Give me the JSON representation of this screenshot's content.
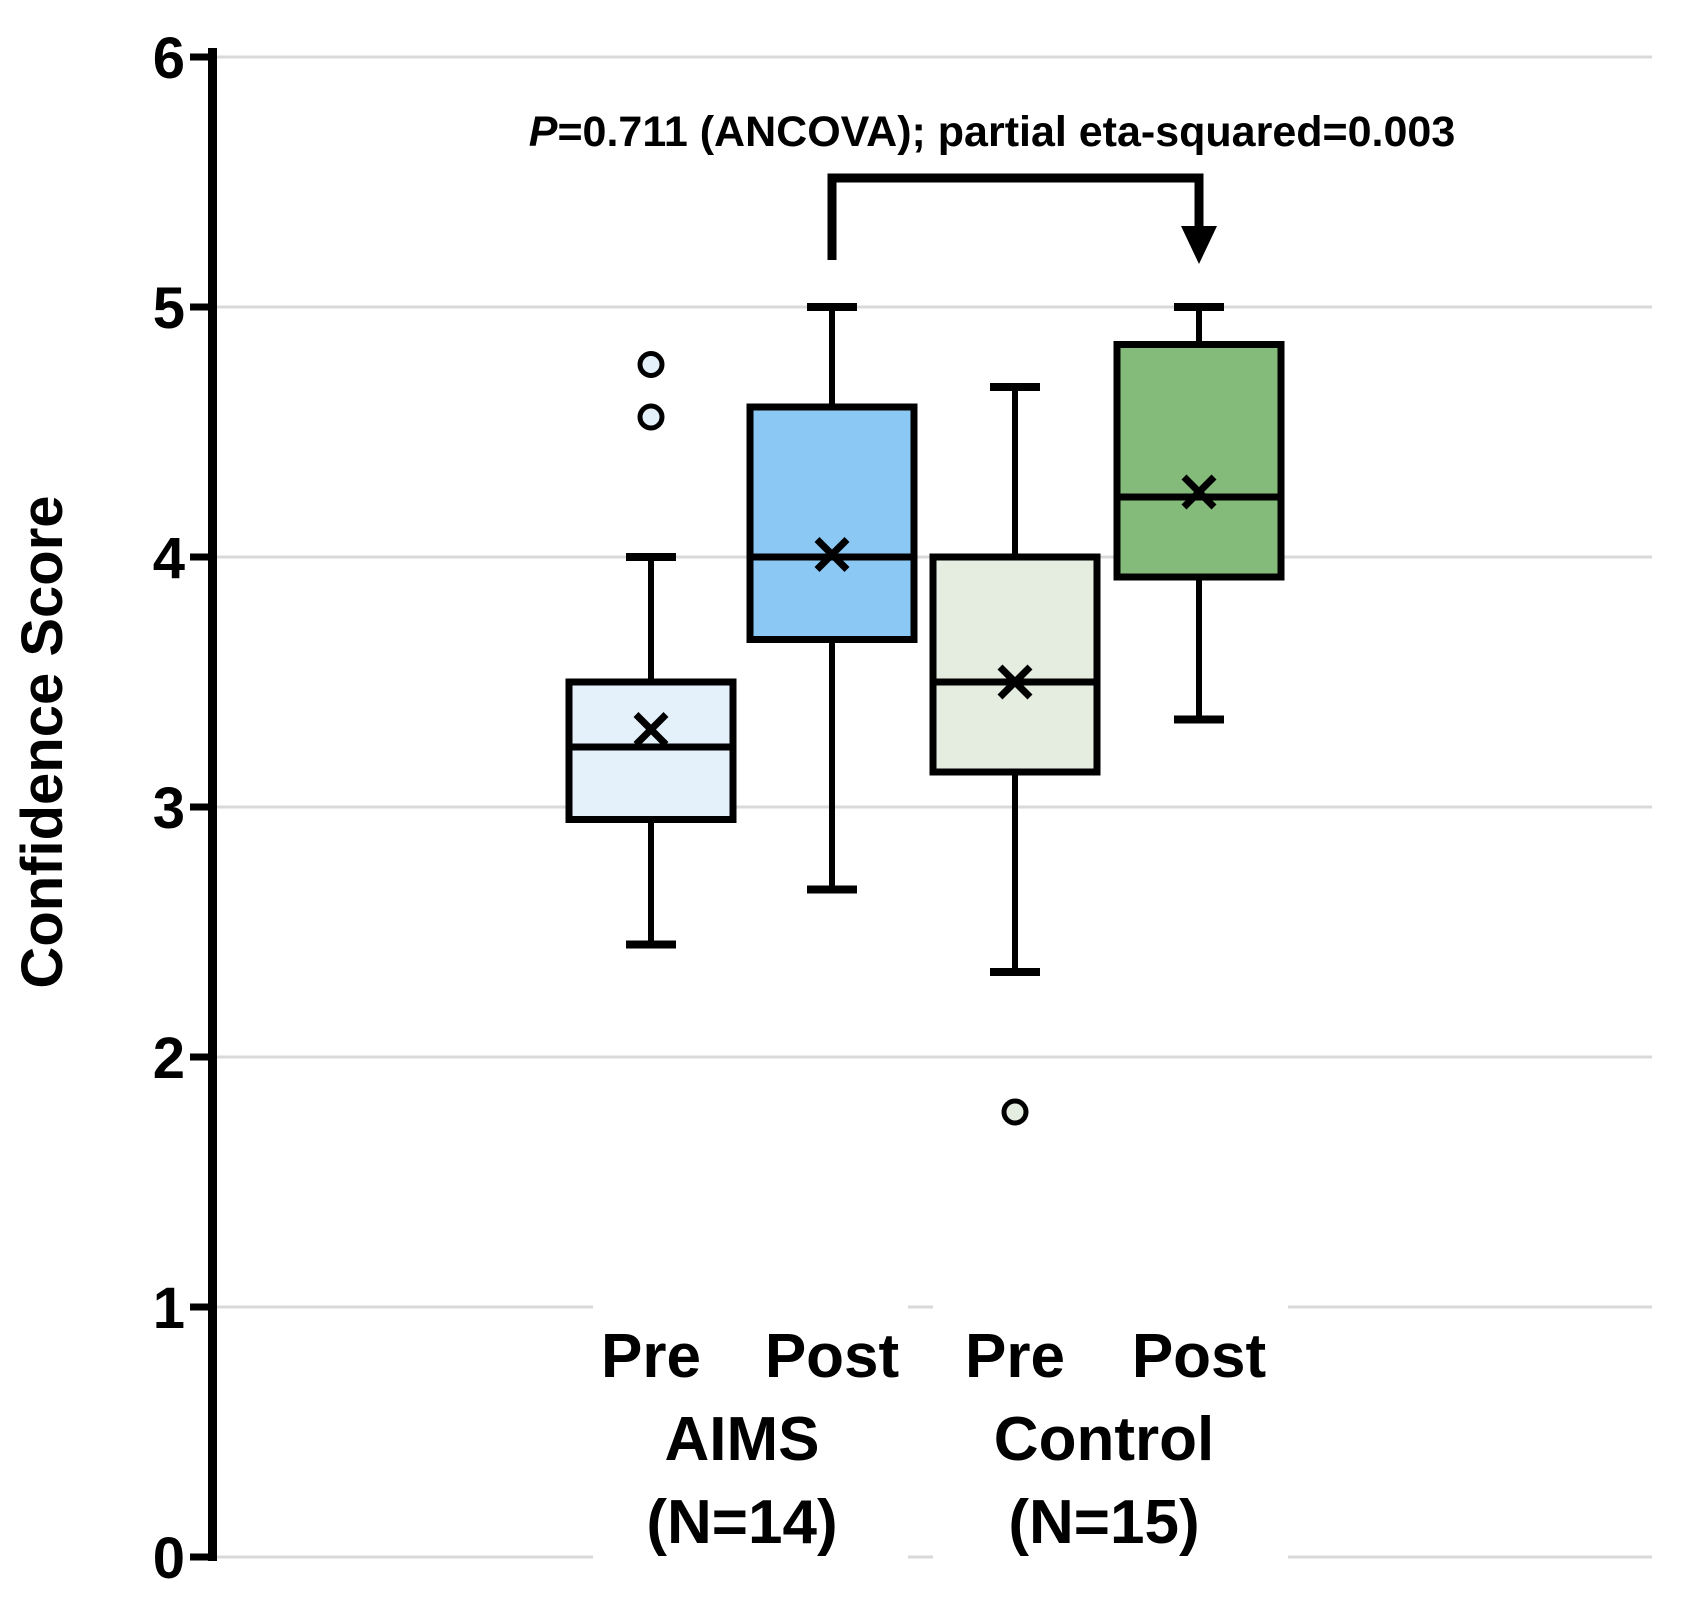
{
  "figure": {
    "background": "#ffffff",
    "annotation": {
      "p": "P",
      "rest": "=0.711 (ANCOVA); partial eta-squared=0.003"
    },
    "comparison_bracket": {
      "between": [
        "Post (AIMS)",
        "Post (Control)"
      ],
      "arrow_points_to": "Post (Control)"
    }
  },
  "chart_data": {
    "type": "box",
    "title": "",
    "ylabel": "Confidence Score",
    "xlabel": "",
    "ylim": [
      0,
      6
    ],
    "yticks": [
      "0",
      "1",
      "2",
      "3",
      "4",
      "5",
      "6"
    ],
    "grid": true,
    "annotation": "P=0.711 (ANCOVA); partial eta-squared=0.003",
    "groups": [
      {
        "label": "Pre",
        "cohort": "AIMS (N=14)",
        "min": 2.45,
        "q1": 2.95,
        "median": 3.24,
        "q3": 3.5,
        "max": 4.0,
        "mean": 3.31,
        "outliers": [
          4.56,
          4.77
        ],
        "fill": "#e4f1fb"
      },
      {
        "label": "Post",
        "cohort": "AIMS (N=14)",
        "min": 2.67,
        "q1": 3.67,
        "median": 4.0,
        "q3": 4.6,
        "max": 5.0,
        "mean": 4.01,
        "outliers": [],
        "fill": "#8cc8f4"
      },
      {
        "label": "Pre",
        "cohort": "Control (N=15)",
        "min": 2.34,
        "q1": 3.14,
        "median": 3.5,
        "q3": 4.0,
        "max": 4.68,
        "mean": 3.5,
        "outliers": [
          1.78
        ],
        "fill": "#e5ede1"
      },
      {
        "label": "Post",
        "cohort": "Control (N=15)",
        "min": 3.35,
        "q1": 3.92,
        "median": 4.24,
        "q3": 4.85,
        "max": 5.0,
        "mean": 4.26,
        "outliers": [],
        "fill": "#85bb7a"
      }
    ],
    "group_labels": [
      {
        "line1": "AIMS",
        "line2": "(N=14)"
      },
      {
        "line1": "Control",
        "line2": "(N=15)"
      }
    ],
    "colors": {
      "gridline": "#d9d9d9",
      "axis": "#000000",
      "box_border": "#000000"
    },
    "legend": null
  }
}
